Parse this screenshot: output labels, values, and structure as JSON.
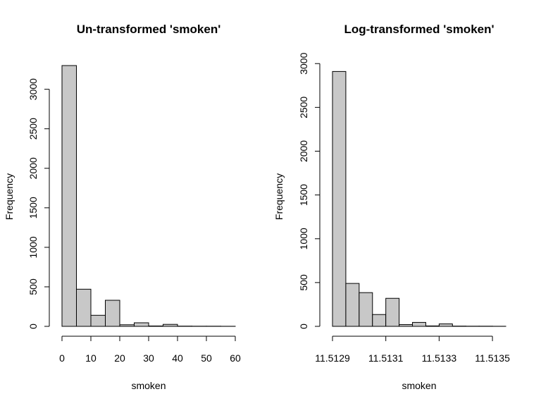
{
  "chart_data": [
    {
      "type": "bar",
      "title": "Un-transformed 'smoken'",
      "xlabel": "smoken",
      "ylabel": "Frequency",
      "bar_color": "#c8c8c8",
      "xlim": [
        0,
        60
      ],
      "ylim": [
        0,
        3300
      ],
      "xticks": [
        0,
        10,
        20,
        30,
        40,
        50,
        60
      ],
      "xtick_labels": [
        "0",
        "10",
        "20",
        "30",
        "40",
        "50",
        "60"
      ],
      "yticks": [
        0,
        500,
        1000,
        1500,
        2000,
        2500,
        3000
      ],
      "ytick_labels": [
        "0",
        "500",
        "1000",
        "1500",
        "2000",
        "2500",
        "3000"
      ],
      "bins": [
        {
          "x0": 0,
          "x1": 5,
          "count": 3300
        },
        {
          "x0": 5,
          "x1": 10,
          "count": 470
        },
        {
          "x0": 10,
          "x1": 15,
          "count": 140
        },
        {
          "x0": 15,
          "x1": 20,
          "count": 330
        },
        {
          "x0": 20,
          "x1": 25,
          "count": 20
        },
        {
          "x0": 25,
          "x1": 30,
          "count": 45
        },
        {
          "x0": 30,
          "x1": 35,
          "count": 5
        },
        {
          "x0": 35,
          "x1": 40,
          "count": 25
        },
        {
          "x0": 40,
          "x1": 45,
          "count": 3
        },
        {
          "x0": 45,
          "x1": 50,
          "count": 2
        },
        {
          "x0": 50,
          "x1": 55,
          "count": 2
        },
        {
          "x0": 55,
          "x1": 60,
          "count": 1
        }
      ]
    },
    {
      "type": "bar",
      "title": "Log-transformed 'smoken'",
      "xlabel": "smoken",
      "ylabel": "Frequency",
      "bar_color": "#c8c8c8",
      "xlim": [
        11.5129,
        11.51355
      ],
      "ylim": [
        0,
        3050
      ],
      "xticks": [
        11.5129,
        11.5131,
        11.5133,
        11.5135
      ],
      "xtick_labels": [
        "11.5129",
        "11.5131",
        "11.5133",
        "11.5135"
      ],
      "yticks": [
        0,
        500,
        1000,
        1500,
        2000,
        2500,
        3000
      ],
      "ytick_labels": [
        "0",
        "500",
        "1000",
        "1500",
        "2000",
        "2500",
        "3000"
      ],
      "bins": [
        {
          "x0": 11.5129,
          "x1": 11.51295,
          "count": 2910
        },
        {
          "x0": 11.51295,
          "x1": 11.513,
          "count": 490
        },
        {
          "x0": 11.513,
          "x1": 11.51305,
          "count": 385
        },
        {
          "x0": 11.51305,
          "x1": 11.5131,
          "count": 135
        },
        {
          "x0": 11.5131,
          "x1": 11.51315,
          "count": 320
        },
        {
          "x0": 11.51315,
          "x1": 11.5132,
          "count": 20
        },
        {
          "x0": 11.5132,
          "x1": 11.51325,
          "count": 45
        },
        {
          "x0": 11.51325,
          "x1": 11.5133,
          "count": 5
        },
        {
          "x0": 11.5133,
          "x1": 11.51335,
          "count": 28
        },
        {
          "x0": 11.51335,
          "x1": 11.5134,
          "count": 3
        },
        {
          "x0": 11.5134,
          "x1": 11.51345,
          "count": 2
        },
        {
          "x0": 11.51345,
          "x1": 11.5135,
          "count": 2
        },
        {
          "x0": 11.5135,
          "x1": 11.51355,
          "count": 1
        }
      ]
    }
  ]
}
